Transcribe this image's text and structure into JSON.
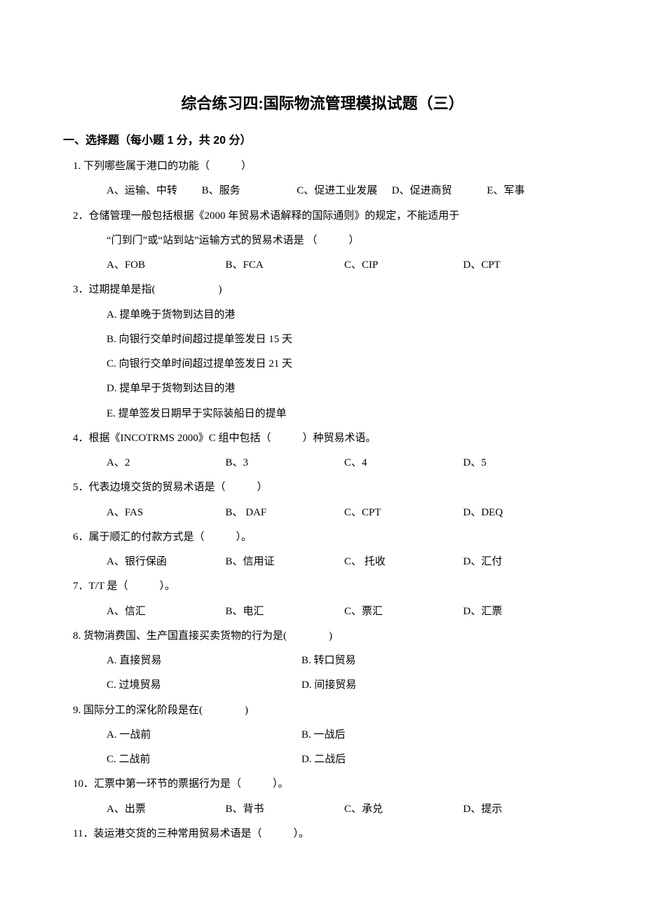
{
  "title": "综合练习四:国际物流管理模拟试题（三）",
  "section": "一、选择题（每小题 1 分，共 20 分）",
  "questions": [
    {
      "stem": "1. 下列哪些属于港口的功能（　　　）",
      "layout": "w5",
      "opts": [
        "A、运输、中转",
        "B、服务",
        "C、促进工业发展",
        "D、促进商贸",
        "E、军事"
      ]
    },
    {
      "stem": "2．仓储管理一般包括根据《2000 年贸易术语解释的国际通则》的规定，不能适用于",
      "cont": "“门到门”或“站到站”运输方式的贸易术语是 （　　　）",
      "layout": "w4",
      "opts": [
        "A、FOB",
        "B、FCA",
        "C、CIP",
        "D、CPT"
      ]
    },
    {
      "stem": "3．过期提单是指(　　　　　　)",
      "layout": "v",
      "opts": [
        "A. 提单晚于货物到达目的港",
        "B. 向银行交单时间超过提单签发日 15 天",
        "C. 向银行交单时间超过提单签发日 21 天",
        "D. 提单早于货物到达目的港",
        "E. 提单签发日期早于实际装船日的提单"
      ]
    },
    {
      "stem": "4．根据《INCOTRMS 2000》C 组中包括（　　　）种贸易术语。",
      "layout": "w4",
      "opts": [
        "A、2",
        "B、3",
        "C、4",
        "D、5"
      ]
    },
    {
      "stem": "5．代表边境交货的贸易术语是（　　　）",
      "layout": "w4",
      "opts": [
        "A、FAS",
        "B、 DAF",
        "C、CPT",
        "D、DEQ"
      ]
    },
    {
      "stem": "6．属于顺汇的付款方式是（　　　）。",
      "layout": "w4",
      "opts": [
        "A、银行保函",
        "B、信用证",
        "C、 托收",
        "D、汇付"
      ]
    },
    {
      "stem": "7．T/T 是（　　　）。",
      "layout": "w4",
      "opts": [
        "A、信汇",
        "B、电汇",
        "C、票汇",
        "D、汇票"
      ]
    },
    {
      "stem": "8. 货物消费国、生产国直接买卖货物的行为是(　　　　)",
      "layout": "w2",
      "opts": [
        "A. 直接贸易",
        "B. 转口贸易",
        "C. 过境贸易",
        "D. 间接贸易"
      ]
    },
    {
      "stem": "9. 国际分工的深化阶段是在(　　　　)",
      "layout": "w2",
      "opts": [
        "A. 一战前",
        "B. 一战后",
        "C. 二战前",
        "D. 二战后"
      ]
    },
    {
      "stem": "10．汇票中第一环节的票据行为是（　　　）。",
      "layout": "w4",
      "opts": [
        "A、出票",
        "B、背书",
        "C、承兑",
        "D、提示"
      ]
    },
    {
      "stem": "11．装运港交货的三种常用贸易术语是（　　　）。",
      "layout": "none",
      "opts": []
    }
  ]
}
